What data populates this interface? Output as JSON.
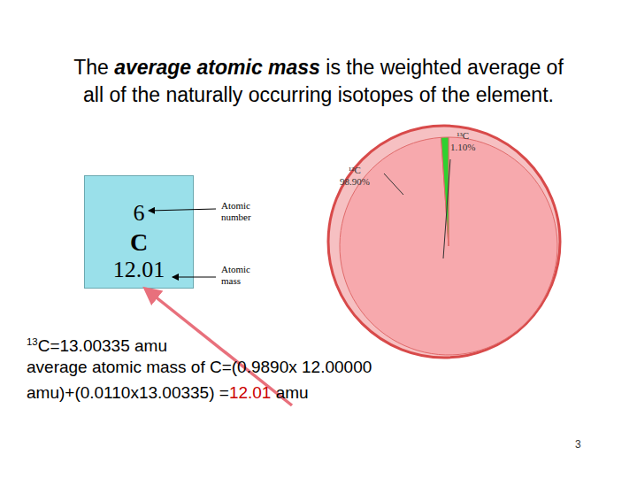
{
  "chart_data": {
    "type": "pie",
    "title": [
      [
        {
          "text": "The "
        },
        {
          "text": "average atomic mass",
          "emphasis": true
        },
        {
          "text": " is the weighted average of"
        }
      ],
      [
        {
          "text": "all of the naturally occurring isotopes of the element."
        }
      ]
    ],
    "categories": [
      "¹²C",
      "¹³C"
    ],
    "values": [
      98.9,
      1.1
    ],
    "value_labels": [
      "98.90%",
      "1.10%"
    ],
    "colors": [
      "#f7a9ad",
      "#2fd12f"
    ],
    "data_labels": true,
    "annotations": {
      "element": {
        "atomic_number": "6",
        "symbol": "C",
        "atomic_mass": "12.01",
        "atomic_number_label": [
          "Atomic",
          "number"
        ],
        "atomic_mass_label": [
          "Atomic",
          "mass"
        ]
      },
      "isotope_line": [
        {
          "text": "13",
          "sup": true
        },
        {
          "text": "C=13.00335 amu"
        }
      ],
      "equation_lines": [
        [
          {
            "text": "average atomic mass of C=(0.9890x 12.00000"
          }
        ],
        [
          {
            "text": "amu)+(0.0110x13.00335) ="
          },
          {
            "text": "12.01",
            "color": "#cc0000"
          },
          {
            "text": " amu"
          }
        ]
      ],
      "page": "3"
    }
  }
}
